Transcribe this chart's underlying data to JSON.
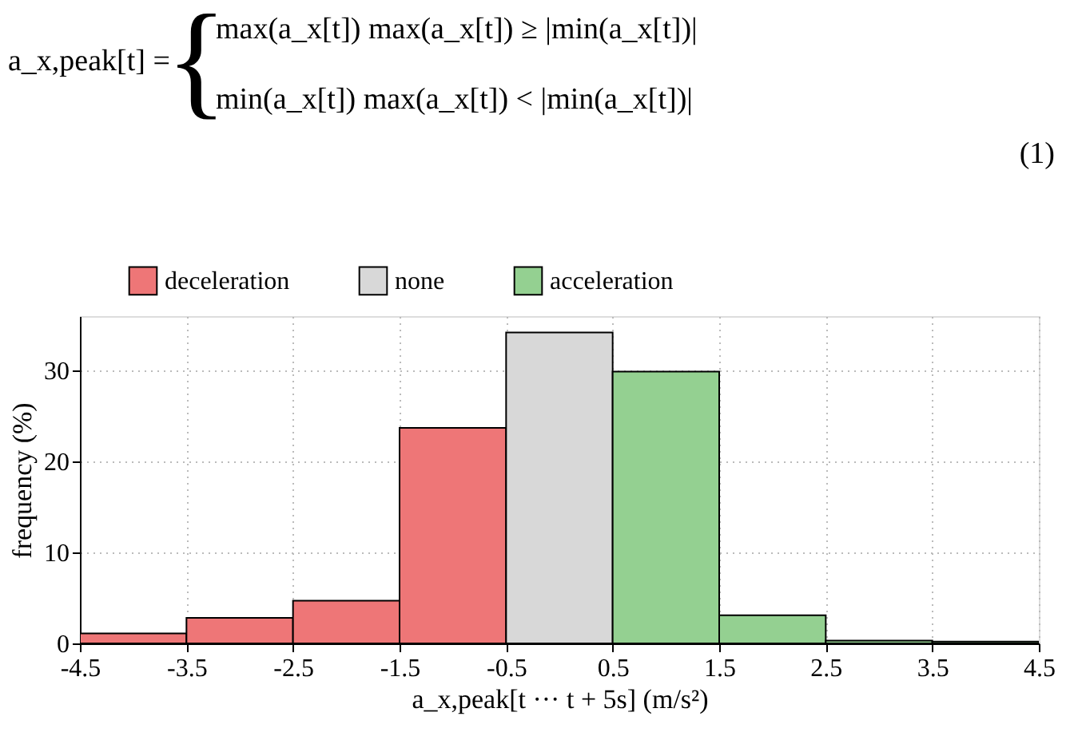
{
  "chart_data": {
    "type": "bar",
    "annotations": [
      "a_x,peak[t]  =",
      "{",
      "max(a_x[t])        max(a_x[t]) ≥ |min(a_x[t])|",
      "min(a_x[t])        max(a_x[t]) < |min(a_x[t])|",
      "(1)"
    ],
    "xlabel": "a_x,peak[t ··· t + 5s]  (m/s²)",
    "ylabel": "frequency  (%)",
    "series": [
      {
        "name": "deceleration",
        "color": "#ee7677",
        "x": [
          -4,
          -3,
          -2,
          -1
        ],
        "values": [
          1.1,
          2.8,
          4.7,
          23.7
        ]
      },
      {
        "name": "none",
        "color": "#d8d8d8",
        "x": [
          0
        ],
        "values": [
          34.2
        ]
      },
      {
        "name": "acceleration",
        "color": "#94d091",
        "x": [
          1,
          2,
          3,
          4
        ],
        "values": [
          29.9,
          3.1,
          0.3,
          0.2
        ]
      }
    ],
    "xlim": [
      -4.5,
      4.5
    ],
    "xticks": [
      -4.5,
      -3.5,
      -2.5,
      -1.5,
      -0.5,
      0.5,
      1.5,
      2.5,
      3.5,
      4.5
    ],
    "ylim": [
      0,
      36
    ],
    "yticks": [
      0,
      10,
      20,
      30
    ],
    "grid": true,
    "legend": "top"
  }
}
